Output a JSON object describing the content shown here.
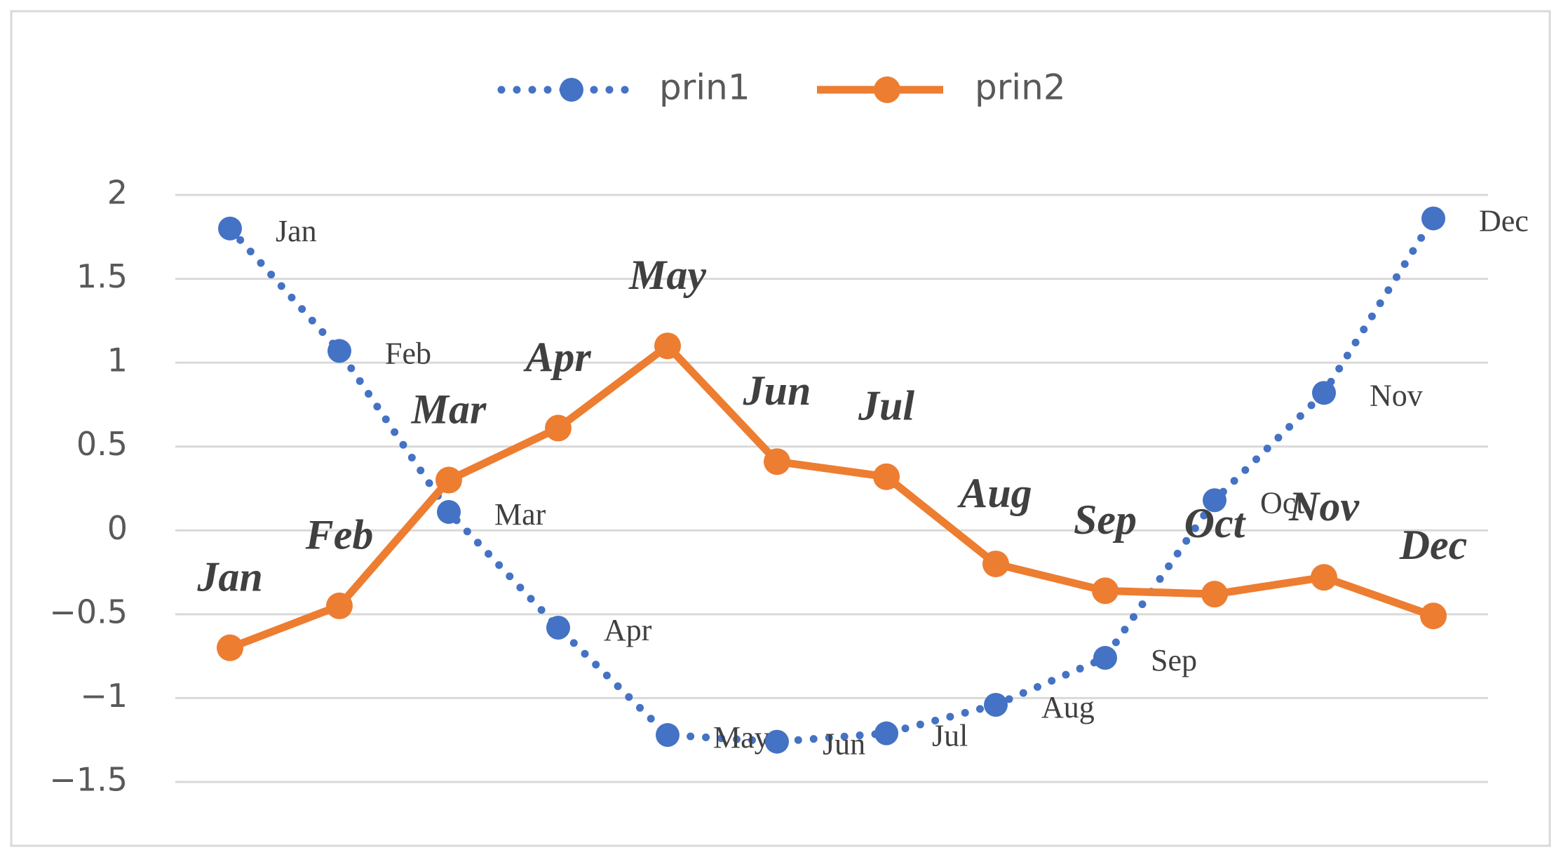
{
  "chart_data": {
    "type": "line",
    "categories": [
      "Jan",
      "Feb",
      "Mar",
      "Apr",
      "May",
      "Jun",
      "Jul",
      "Aug",
      "Sep",
      "Oct",
      "Nov",
      "Dec"
    ],
    "series": [
      {
        "name": "prin1",
        "color": "#4472c4",
        "line_style": "dotted",
        "values": [
          1.8,
          1.07,
          0.11,
          -0.58,
          -1.22,
          -1.26,
          -1.21,
          -1.04,
          -0.76,
          0.18,
          0.82,
          1.86
        ]
      },
      {
        "name": "prin2",
        "color": "#ed7d31",
        "line_style": "solid",
        "values": [
          -0.7,
          -0.45,
          0.3,
          0.61,
          1.1,
          0.41,
          0.32,
          -0.2,
          -0.36,
          -0.38,
          -0.28,
          -0.51
        ]
      }
    ],
    "ylim": [
      -1.5,
      2
    ],
    "yticks": [
      {
        "value": -1.5,
        "label": "−1.5"
      },
      {
        "value": -1,
        "label": "−1"
      },
      {
        "value": -0.5,
        "label": "−0.5"
      },
      0,
      0.5,
      1,
      1.5,
      2
    ],
    "grid": true,
    "legend": "top"
  }
}
